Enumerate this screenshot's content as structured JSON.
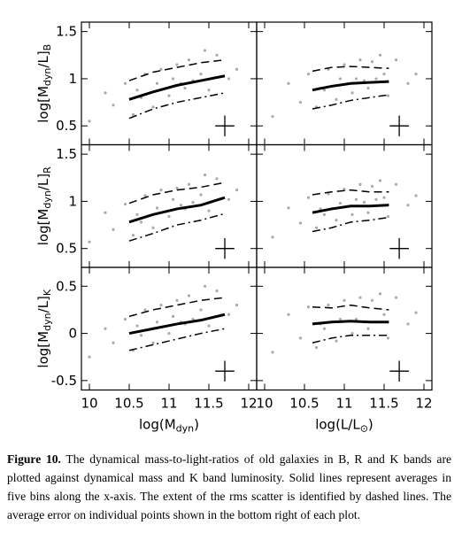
{
  "chart_data": [
    {
      "type": "scatter",
      "xlim": [
        9.9,
        12.1
      ],
      "ylim": [
        0.3,
        1.6
      ],
      "xticks": [
        10,
        10.5,
        11,
        11.5,
        12
      ],
      "yticks": [
        0.5,
        1,
        1.5
      ],
      "xtick_labels": false,
      "ytick_labels": true,
      "ylabel": [
        {
          "text": "log[M"
        },
        {
          "text": "dyn",
          "sub": true
        },
        {
          "text": "/L]"
        },
        {
          "text": "B",
          "sub": true
        }
      ],
      "color": "#aaaaaa",
      "x": [
        10.0,
        10.2,
        10.3,
        10.45,
        10.55,
        10.6,
        10.7,
        10.8,
        10.85,
        10.9,
        11.0,
        11.05,
        11.1,
        11.2,
        11.25,
        11.3,
        11.4,
        11.5,
        11.6,
        11.75,
        11.85,
        10.65,
        11.15,
        11.45
      ],
      "y": [
        0.55,
        0.85,
        0.72,
        0.95,
        0.62,
        0.88,
        1.05,
        0.7,
        0.95,
        1.1,
        0.82,
        1.0,
        1.15,
        0.9,
        1.2,
        0.98,
        1.05,
        0.88,
        1.25,
        1.0,
        1.1,
        0.8,
        0.95,
        1.3
      ],
      "series": [
        {
          "style": "solid",
          "x": [
            10.5,
            10.8,
            11.1,
            11.4,
            11.7
          ],
          "values": [
            0.78,
            0.86,
            0.93,
            0.98,
            1.03
          ]
        },
        {
          "style": "dashed",
          "x": [
            10.5,
            10.8,
            11.1,
            11.4,
            11.7
          ],
          "values": [
            0.98,
            1.07,
            1.12,
            1.17,
            1.2
          ]
        },
        {
          "style": "dashdot",
          "x": [
            10.5,
            10.8,
            11.1,
            11.4,
            11.7
          ],
          "values": [
            0.58,
            0.68,
            0.75,
            0.8,
            0.85
          ]
        }
      ],
      "error_bar": {
        "x": 11.7,
        "y": 0.5,
        "xerr": 0.12,
        "yerr": 0.11
      }
    },
    {
      "type": "scatter",
      "xlim": [
        9.9,
        12.1
      ],
      "ylim": [
        0.3,
        1.6
      ],
      "xticks": [
        10,
        10.5,
        11,
        11.5,
        12
      ],
      "yticks": [
        0.5,
        1,
        1.5
      ],
      "xtick_labels": false,
      "ytick_labels": false,
      "color": "#aaaaaa",
      "x": [
        10.1,
        10.3,
        10.45,
        10.55,
        10.65,
        10.7,
        10.8,
        10.9,
        10.95,
        11.0,
        11.1,
        11.15,
        11.2,
        11.3,
        11.35,
        11.4,
        11.5,
        11.55,
        11.65,
        11.8,
        11.9,
        10.75,
        11.25,
        11.45
      ],
      "y": [
        0.6,
        0.95,
        0.75,
        1.05,
        0.7,
        0.9,
        1.1,
        0.78,
        1.0,
        1.15,
        0.85,
        1.0,
        1.2,
        0.9,
        1.18,
        1.0,
        1.05,
        0.82,
        1.2,
        0.95,
        1.05,
        0.88,
        0.98,
        1.25
      ],
      "series": [
        {
          "style": "solid",
          "x": [
            10.6,
            10.84,
            11.08,
            11.32,
            11.56
          ],
          "values": [
            0.88,
            0.92,
            0.95,
            0.96,
            0.97
          ]
        },
        {
          "style": "dashed",
          "x": [
            10.6,
            10.84,
            11.08,
            11.32,
            11.56
          ],
          "values": [
            1.08,
            1.12,
            1.13,
            1.12,
            1.11
          ]
        },
        {
          "style": "dashdot",
          "x": [
            10.6,
            10.84,
            11.08,
            11.32,
            11.56
          ],
          "values": [
            0.68,
            0.72,
            0.77,
            0.8,
            0.83
          ]
        }
      ],
      "error_bar": {
        "x": 11.69,
        "y": 0.5,
        "xerr": 0.12,
        "yerr": 0.11
      }
    },
    {
      "type": "scatter",
      "xlim": [
        9.9,
        12.1
      ],
      "ylim": [
        0.3,
        1.6
      ],
      "xticks": [
        10,
        10.5,
        11,
        11.5,
        12
      ],
      "yticks": [
        0.5,
        1,
        1.5
      ],
      "xtick_labels": false,
      "ytick_labels": true,
      "ylabel": [
        {
          "text": "log[M"
        },
        {
          "text": "dyn",
          "sub": true
        },
        {
          "text": "/L]"
        },
        {
          "text": "R",
          "sub": true
        }
      ],
      "color": "#aaaaaa",
      "x": [
        10.0,
        10.2,
        10.3,
        10.45,
        10.55,
        10.6,
        10.7,
        10.8,
        10.85,
        10.9,
        11.0,
        11.05,
        11.1,
        11.2,
        11.25,
        11.3,
        11.4,
        11.5,
        11.6,
        11.75,
        11.85,
        10.65,
        11.15,
        11.45
      ],
      "y": [
        0.57,
        0.88,
        0.7,
        0.97,
        0.64,
        0.86,
        1.06,
        0.72,
        0.93,
        1.12,
        0.84,
        1.02,
        1.14,
        0.92,
        1.18,
        0.99,
        1.07,
        0.9,
        1.24,
        1.02,
        1.12,
        0.78,
        0.96,
        1.28
      ],
      "series": [
        {
          "style": "solid",
          "x": [
            10.5,
            10.8,
            11.1,
            11.4,
            11.7
          ],
          "values": [
            0.78,
            0.86,
            0.92,
            0.96,
            1.04
          ]
        },
        {
          "style": "dashed",
          "x": [
            10.5,
            10.8,
            11.1,
            11.4,
            11.7
          ],
          "values": [
            0.98,
            1.07,
            1.12,
            1.15,
            1.2
          ]
        },
        {
          "style": "dashdot",
          "x": [
            10.5,
            10.8,
            11.1,
            11.4,
            11.7
          ],
          "values": [
            0.58,
            0.66,
            0.75,
            0.8,
            0.87
          ]
        }
      ],
      "error_bar": {
        "x": 11.7,
        "y": 0.5,
        "xerr": 0.12,
        "yerr": 0.11
      }
    },
    {
      "type": "scatter",
      "xlim": [
        9.9,
        12.1
      ],
      "ylim": [
        0.3,
        1.6
      ],
      "xticks": [
        10,
        10.5,
        11,
        11.5,
        12
      ],
      "yticks": [
        0.5,
        1,
        1.5
      ],
      "xtick_labels": false,
      "ytick_labels": false,
      "color": "#aaaaaa",
      "x": [
        10.1,
        10.3,
        10.45,
        10.55,
        10.65,
        10.7,
        10.8,
        10.9,
        10.95,
        11.0,
        11.1,
        11.15,
        11.2,
        11.3,
        11.35,
        11.4,
        11.5,
        11.55,
        11.65,
        11.8,
        11.9,
        10.75,
        11.25,
        11.45
      ],
      "y": [
        0.62,
        0.93,
        0.77,
        1.04,
        0.72,
        0.92,
        1.08,
        0.8,
        0.98,
        1.13,
        0.86,
        1.02,
        1.18,
        0.88,
        1.16,
        1.02,
        1.04,
        0.84,
        1.18,
        0.96,
        1.06,
        0.86,
        0.99,
        1.22
      ],
      "series": [
        {
          "style": "solid",
          "x": [
            10.6,
            10.84,
            11.08,
            11.32,
            11.56
          ],
          "values": [
            0.88,
            0.92,
            0.95,
            0.95,
            0.96
          ]
        },
        {
          "style": "dashed",
          "x": [
            10.6,
            10.84,
            11.08,
            11.32,
            11.56
          ],
          "values": [
            1.07,
            1.1,
            1.12,
            1.1,
            1.1
          ]
        },
        {
          "style": "dashdot",
          "x": [
            10.6,
            10.84,
            11.08,
            11.32,
            11.56
          ],
          "values": [
            0.68,
            0.72,
            0.78,
            0.8,
            0.83
          ]
        }
      ],
      "error_bar": {
        "x": 11.69,
        "y": 0.5,
        "xerr": 0.12,
        "yerr": 0.11
      }
    },
    {
      "type": "scatter",
      "xlim": [
        9.9,
        12.1
      ],
      "ylim": [
        -0.6,
        0.7
      ],
      "xticks": [
        10,
        10.5,
        11,
        11.5,
        12
      ],
      "yticks": [
        -0.5,
        0,
        0.5
      ],
      "xtick_labels": true,
      "ytick_labels": true,
      "ylabel": [
        {
          "text": "log[M"
        },
        {
          "text": "dyn",
          "sub": true
        },
        {
          "text": "/L]"
        },
        {
          "text": "K",
          "sub": true
        }
      ],
      "xlabel": [
        {
          "text": "log(M"
        },
        {
          "text": "dyn",
          "sub": true
        },
        {
          "text": ")"
        }
      ],
      "color": "#aaaaaa",
      "x": [
        10.0,
        10.2,
        10.3,
        10.45,
        10.55,
        10.6,
        10.7,
        10.8,
        10.85,
        10.9,
        11.0,
        11.05,
        11.1,
        11.2,
        11.25,
        11.3,
        11.4,
        11.5,
        11.6,
        11.75,
        11.85,
        10.65,
        11.15,
        11.45
      ],
      "y": [
        -0.25,
        0.05,
        -0.1,
        0.15,
        -0.18,
        0.08,
        0.25,
        -0.1,
        0.12,
        0.3,
        0.0,
        0.18,
        0.35,
        0.1,
        0.4,
        0.15,
        0.25,
        0.08,
        0.45,
        0.2,
        0.3,
        -0.02,
        0.12,
        0.5
      ],
      "series": [
        {
          "style": "solid",
          "x": [
            10.5,
            10.8,
            11.1,
            11.4,
            11.7
          ],
          "values": [
            0.0,
            0.05,
            0.1,
            0.14,
            0.2
          ]
        },
        {
          "style": "dashed",
          "x": [
            10.5,
            10.8,
            11.1,
            11.4,
            11.7
          ],
          "values": [
            0.18,
            0.25,
            0.3,
            0.35,
            0.38
          ]
        },
        {
          "style": "dashdot",
          "x": [
            10.5,
            10.8,
            11.1,
            11.4,
            11.7
          ],
          "values": [
            -0.18,
            -0.12,
            -0.06,
            0.0,
            0.05
          ]
        }
      ],
      "error_bar": {
        "x": 11.7,
        "y": -0.4,
        "xerr": 0.12,
        "yerr": 0.11
      }
    },
    {
      "type": "scatter",
      "xlim": [
        9.9,
        12.1
      ],
      "ylim": [
        -0.6,
        0.7
      ],
      "xticks": [
        10,
        10.5,
        11,
        11.5,
        12
      ],
      "yticks": [
        -0.5,
        0,
        0.5
      ],
      "xtick_labels": true,
      "ytick_labels": false,
      "xlabel": [
        {
          "text": "log(L/L"
        },
        {
          "text": "⊙",
          "sub": true
        },
        {
          "text": ")"
        }
      ],
      "color": "#aaaaaa",
      "x": [
        10.1,
        10.3,
        10.45,
        10.55,
        10.65,
        10.7,
        10.8,
        10.9,
        10.95,
        11.0,
        11.1,
        11.15,
        11.2,
        11.3,
        11.35,
        11.4,
        11.5,
        11.55,
        11.65,
        11.8,
        11.9,
        10.75,
        11.25,
        11.45
      ],
      "y": [
        -0.2,
        0.2,
        -0.05,
        0.28,
        -0.15,
        0.1,
        0.3,
        -0.08,
        0.15,
        0.35,
        0.0,
        0.15,
        0.38,
        0.05,
        0.35,
        0.12,
        0.2,
        -0.05,
        0.38,
        0.1,
        0.22,
        0.05,
        0.12,
        0.42
      ],
      "series": [
        {
          "style": "solid",
          "x": [
            10.6,
            10.84,
            11.08,
            11.32,
            11.56
          ],
          "values": [
            0.1,
            0.12,
            0.13,
            0.12,
            0.12
          ]
        },
        {
          "style": "dashed",
          "x": [
            10.6,
            10.84,
            11.08,
            11.32,
            11.56
          ],
          "values": [
            0.28,
            0.27,
            0.3,
            0.27,
            0.25
          ]
        },
        {
          "style": "dashdot",
          "x": [
            10.6,
            10.84,
            11.08,
            11.32,
            11.56
          ],
          "values": [
            -0.1,
            -0.05,
            -0.02,
            -0.02,
            -0.02
          ]
        }
      ],
      "error_bar": {
        "x": 11.69,
        "y": -0.4,
        "xerr": 0.12,
        "yerr": 0.11
      }
    }
  ],
  "caption": {
    "label": "Figure 10.",
    "text": "The dynamical mass-to-light-ratios of old galaxies in B, R and K bands are plotted against dynamical mass and K band luminosity. Solid lines represent averages in five bins along the x-axis. The extent of the rms scatter is identified by dashed lines. The average error on individual points shown in the bottom right of each plot."
  }
}
